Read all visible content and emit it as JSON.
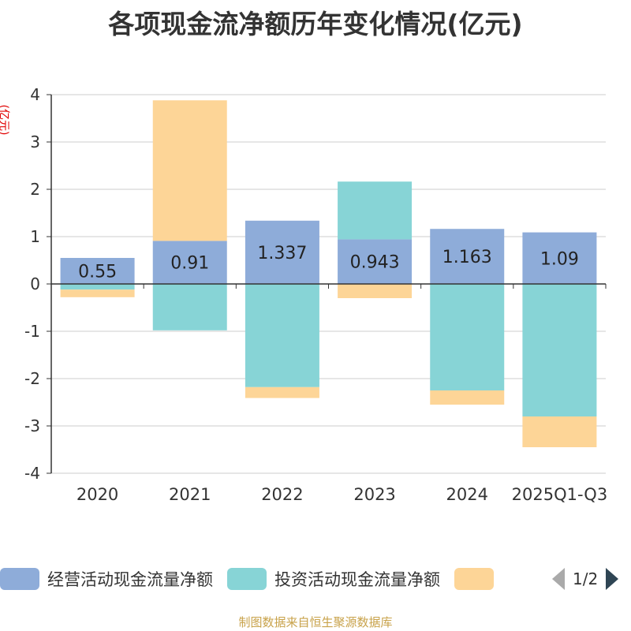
{
  "title": "各项现金流净额历年变化情况(亿元)",
  "unit_label": "(亿元)",
  "source": "制图数据来自恒生聚源数据库",
  "pager": {
    "current": "1/2"
  },
  "chart_data": {
    "type": "bar",
    "stacked": true,
    "categories": [
      "2020",
      "2021",
      "2022",
      "2023",
      "2024",
      "2025Q1-Q3"
    ],
    "ylim": [
      -4,
      4
    ],
    "yticks": [
      4,
      3,
      2,
      1,
      0,
      -1,
      -2,
      -3,
      -4
    ],
    "grid": true,
    "legend_position": "bottom",
    "series": [
      {
        "name": "经营活动现金流量净额",
        "color": "#8eacd9",
        "values": [
          0.55,
          0.91,
          1.337,
          0.943,
          1.163,
          1.09
        ],
        "labels": [
          "0.55",
          "0.91",
          "1.337",
          "0.943",
          "1.163",
          "1.09"
        ]
      },
      {
        "name": "投资活动现金流量净额",
        "color": "#87d4d6",
        "values": [
          -0.12,
          -0.98,
          -2.18,
          1.22,
          -2.25,
          -2.8
        ]
      },
      {
        "name": "",
        "color": "#fdd597",
        "values": [
          -0.16,
          2.97,
          -0.23,
          -0.3,
          -0.3,
          -0.65
        ]
      }
    ]
  }
}
